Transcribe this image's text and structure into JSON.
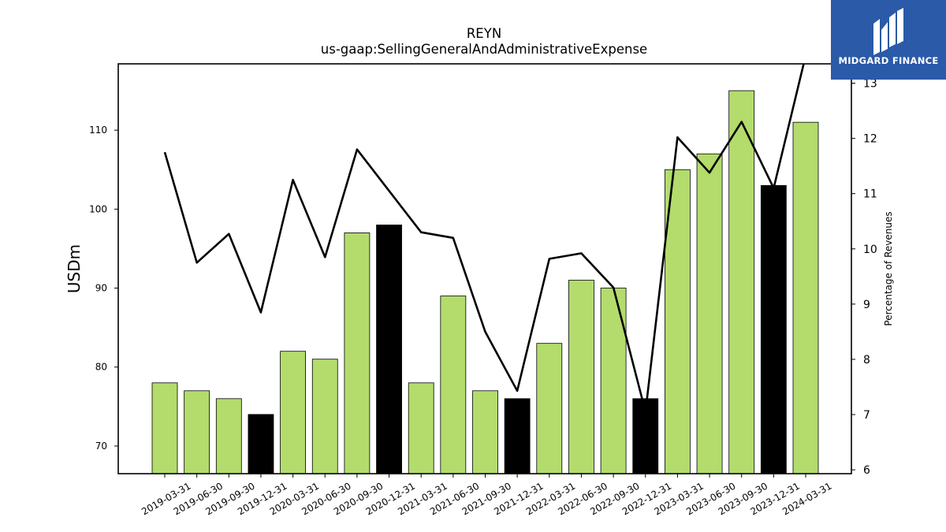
{
  "chart_data": {
    "type": "bar",
    "title": "REYN",
    "subtitle": "us-gaap:SellingGeneralAndAdministrativeExpense",
    "ylabel": "USDm",
    "y2label": "Percentage of Revenues",
    "categories": [
      "2019-03-31",
      "2019-06-30",
      "2019-09-30",
      "2019-12-31",
      "2020-03-31",
      "2020-06-30",
      "2020-09-30",
      "2020-12-31",
      "2021-03-31",
      "2021-06-30",
      "2021-09-30",
      "2021-12-31",
      "2022-03-31",
      "2022-06-30",
      "2022-09-30",
      "2022-12-31",
      "2023-03-31",
      "2023-06-30",
      "2023-09-30",
      "2023-12-31",
      "2024-03-31"
    ],
    "series": [
      {
        "type": "bar",
        "values": [
          78,
          77,
          76,
          74,
          82,
          81,
          97,
          98,
          78,
          89,
          77,
          76,
          83,
          91,
          90,
          76,
          105,
          107,
          115,
          103,
          111
        ],
        "q4_highlight": [
          false,
          false,
          false,
          true,
          false,
          false,
          false,
          true,
          false,
          false,
          false,
          true,
          false,
          false,
          false,
          true,
          false,
          false,
          false,
          true,
          false
        ]
      },
      {
        "type": "line",
        "axis": "right",
        "values": [
          11.75,
          9.75,
          10.27,
          8.85,
          11.25,
          9.85,
          11.8,
          11.05,
          10.3,
          10.2,
          8.5,
          7.43,
          9.82,
          9.92,
          9.3,
          7.05,
          12.02,
          11.38,
          12.3,
          11.1,
          13.5
        ]
      }
    ],
    "ylim": [
      66.5,
      118.4
    ],
    "y2lim": [
      5.93,
      13.35
    ],
    "yticks": [
      70,
      80,
      90,
      100,
      110
    ],
    "y2ticks": [
      6,
      7,
      8,
      9,
      10,
      11,
      12,
      13
    ],
    "grid": false,
    "legend": "none",
    "colors": {
      "bar": "#b3dc6c",
      "bar_q4": "#000000",
      "line": "#000000",
      "edge": "#000000"
    }
  },
  "logo": {
    "text": "MIDGARD FINANCE",
    "color": "#2a5aa8"
  }
}
